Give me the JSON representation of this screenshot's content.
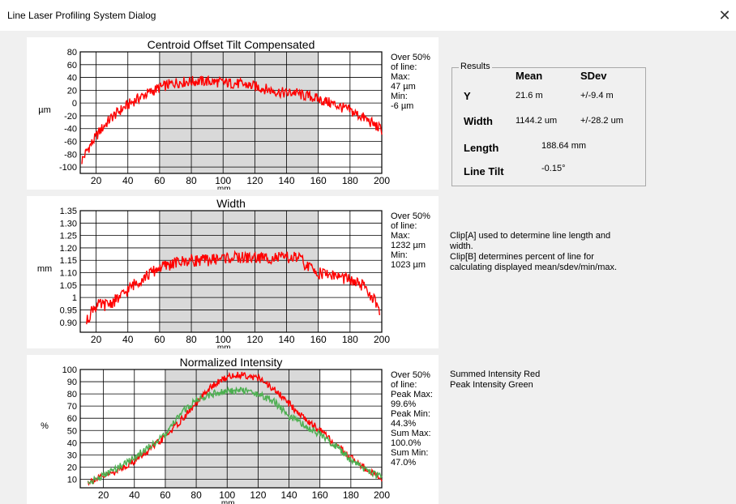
{
  "window": {
    "title": "Line Laser Profiling System Dialog",
    "close_glyph": "✕"
  },
  "results": {
    "group_label": "Results",
    "col_mean": "Mean",
    "col_sdev": "SDev",
    "y_label": "Y",
    "y_mean": "21.6 m",
    "y_sdev": "+/-9.4 m",
    "width_label": "Width",
    "width_mean": "1144.2 um",
    "width_sdev": "+/-28.2 um",
    "length_label": "Length",
    "length_value": "188.64 mm",
    "tilt_label": "Line Tilt",
    "tilt_value": "-0.15°"
  },
  "notes": {
    "clip_a_1": "Clip[A] used to determine line length and",
    "clip_a_2": "width.",
    "clip_b_1": "Clip[B] determines percent of line for",
    "clip_b_2": "calculating displayed mean/sdev/min/max.",
    "legend_red": "Summed Intensity Red",
    "legend_green": "Peak Intensity Green"
  },
  "chart_data": [
    {
      "type": "line",
      "title": "Centroid Offset Tilt Compensated",
      "xlabel": "mm",
      "ylabel": "µm",
      "xlim": [
        10,
        200
      ],
      "ylim": [
        -110,
        80
      ],
      "xticks": [
        20,
        40,
        60,
        80,
        100,
        120,
        140,
        160,
        180,
        200
      ],
      "yticks": [
        80,
        60,
        40,
        20,
        0,
        -20,
        -40,
        -60,
        -80,
        -100
      ],
      "ytick_labels": [
        "80",
        "60",
        "40",
        "20",
        "0",
        "-20",
        "-40",
        "-60",
        "-80",
        "-100"
      ],
      "grid": true,
      "shaded_x_range": [
        60,
        160
      ],
      "stats": [
        "Over 50%",
        "of line:",
        "Max:",
        "47 µm",
        "Min:",
        "-6 µm"
      ],
      "series": [
        {
          "color": "#ff0000",
          "x": [
            11,
            14,
            18,
            22,
            26,
            30,
            35,
            40,
            45,
            50,
            55,
            60,
            65,
            70,
            80,
            90,
            100,
            110,
            120,
            130,
            140,
            145,
            150,
            155,
            160,
            170,
            180,
            190,
            200
          ],
          "y": [
            -90,
            -75,
            -60,
            -45,
            -33,
            -22,
            -12,
            -3,
            5,
            12,
            18,
            24,
            28,
            32,
            34,
            34,
            32,
            30,
            26,
            20,
            15,
            17,
            12,
            10,
            6,
            -2,
            -12,
            -25,
            -42
          ]
        }
      ]
    },
    {
      "type": "line",
      "title": "Width",
      "xlabel": "mm",
      "ylabel": "mm",
      "xlim": [
        10,
        200
      ],
      "ylim": [
        0.86,
        1.35
      ],
      "xticks": [
        20,
        40,
        60,
        80,
        100,
        120,
        140,
        160,
        180,
        200
      ],
      "yticks": [
        1.35,
        1.3,
        1.25,
        1.2,
        1.15,
        1.1,
        1.05,
        1.0,
        0.95,
        0.9
      ],
      "ytick_labels": [
        "1.35",
        "1.30",
        "1.25",
        "1.20",
        "1.15",
        "1.10",
        "1.05",
        "1",
        "0.95",
        "0.90"
      ],
      "grid": true,
      "shaded_x_range": [
        60,
        160
      ],
      "stats": [
        "Over 50%",
        "of line:",
        "Max:",
        "1232 µm",
        "Min:",
        "1023 µm"
      ],
      "series": [
        {
          "color": "#ff0000",
          "x": [
            14,
            18,
            22,
            26,
            30,
            35,
            40,
            45,
            50,
            55,
            60,
            65,
            70,
            80,
            90,
            100,
            110,
            120,
            130,
            140,
            148,
            152,
            160,
            170,
            180,
            190,
            196,
            199
          ],
          "y": [
            0.9,
            0.96,
            0.97,
            0.97,
            0.98,
            1.0,
            1.03,
            1.06,
            1.08,
            1.1,
            1.12,
            1.13,
            1.14,
            1.15,
            1.15,
            1.16,
            1.16,
            1.16,
            1.16,
            1.16,
            1.16,
            1.13,
            1.1,
            1.09,
            1.07,
            1.04,
            0.98,
            0.93
          ]
        }
      ]
    },
    {
      "type": "line",
      "title": "Normalized Intensity",
      "xlabel": "mm",
      "ylabel": "%",
      "xlim": [
        5,
        200
      ],
      "ylim": [
        3,
        100
      ],
      "xticks": [
        20,
        40,
        60,
        80,
        100,
        120,
        140,
        160,
        180,
        200
      ],
      "yticks": [
        100,
        90,
        80,
        70,
        60,
        50,
        40,
        30,
        20,
        10
      ],
      "ytick_labels": [
        "100",
        "90",
        "80",
        "70",
        "60",
        "50",
        "40",
        "30",
        "20",
        "10"
      ],
      "grid": true,
      "shaded_x_range": [
        60,
        160
      ],
      "stats": [
        "Over 50%",
        "of line:",
        "Peak Max:",
        "99.6%",
        "Peak Min:",
        "44.3%",
        "Sum Max:",
        "100.0%",
        "Sum Min:",
        "47.0%"
      ],
      "series": [
        {
          "color": "#ff0000",
          "x": [
            10,
            20,
            30,
            40,
            50,
            60,
            70,
            80,
            90,
            100,
            110,
            120,
            130,
            140,
            150,
            160,
            170,
            180,
            190,
            200
          ],
          "y": [
            8,
            12,
            18,
            25,
            34,
            45,
            58,
            72,
            86,
            94,
            96,
            93,
            84,
            72,
            60,
            50,
            38,
            28,
            18,
            10
          ]
        },
        {
          "color": "#4caf50",
          "x": [
            10,
            20,
            30,
            40,
            50,
            60,
            70,
            80,
            90,
            100,
            110,
            120,
            130,
            140,
            150,
            160,
            170,
            180,
            190,
            200
          ],
          "y": [
            7,
            13,
            20,
            28,
            37,
            46,
            64,
            75,
            80,
            82,
            83,
            80,
            74,
            62,
            54,
            47,
            37,
            26,
            17,
            12
          ]
        }
      ]
    }
  ]
}
